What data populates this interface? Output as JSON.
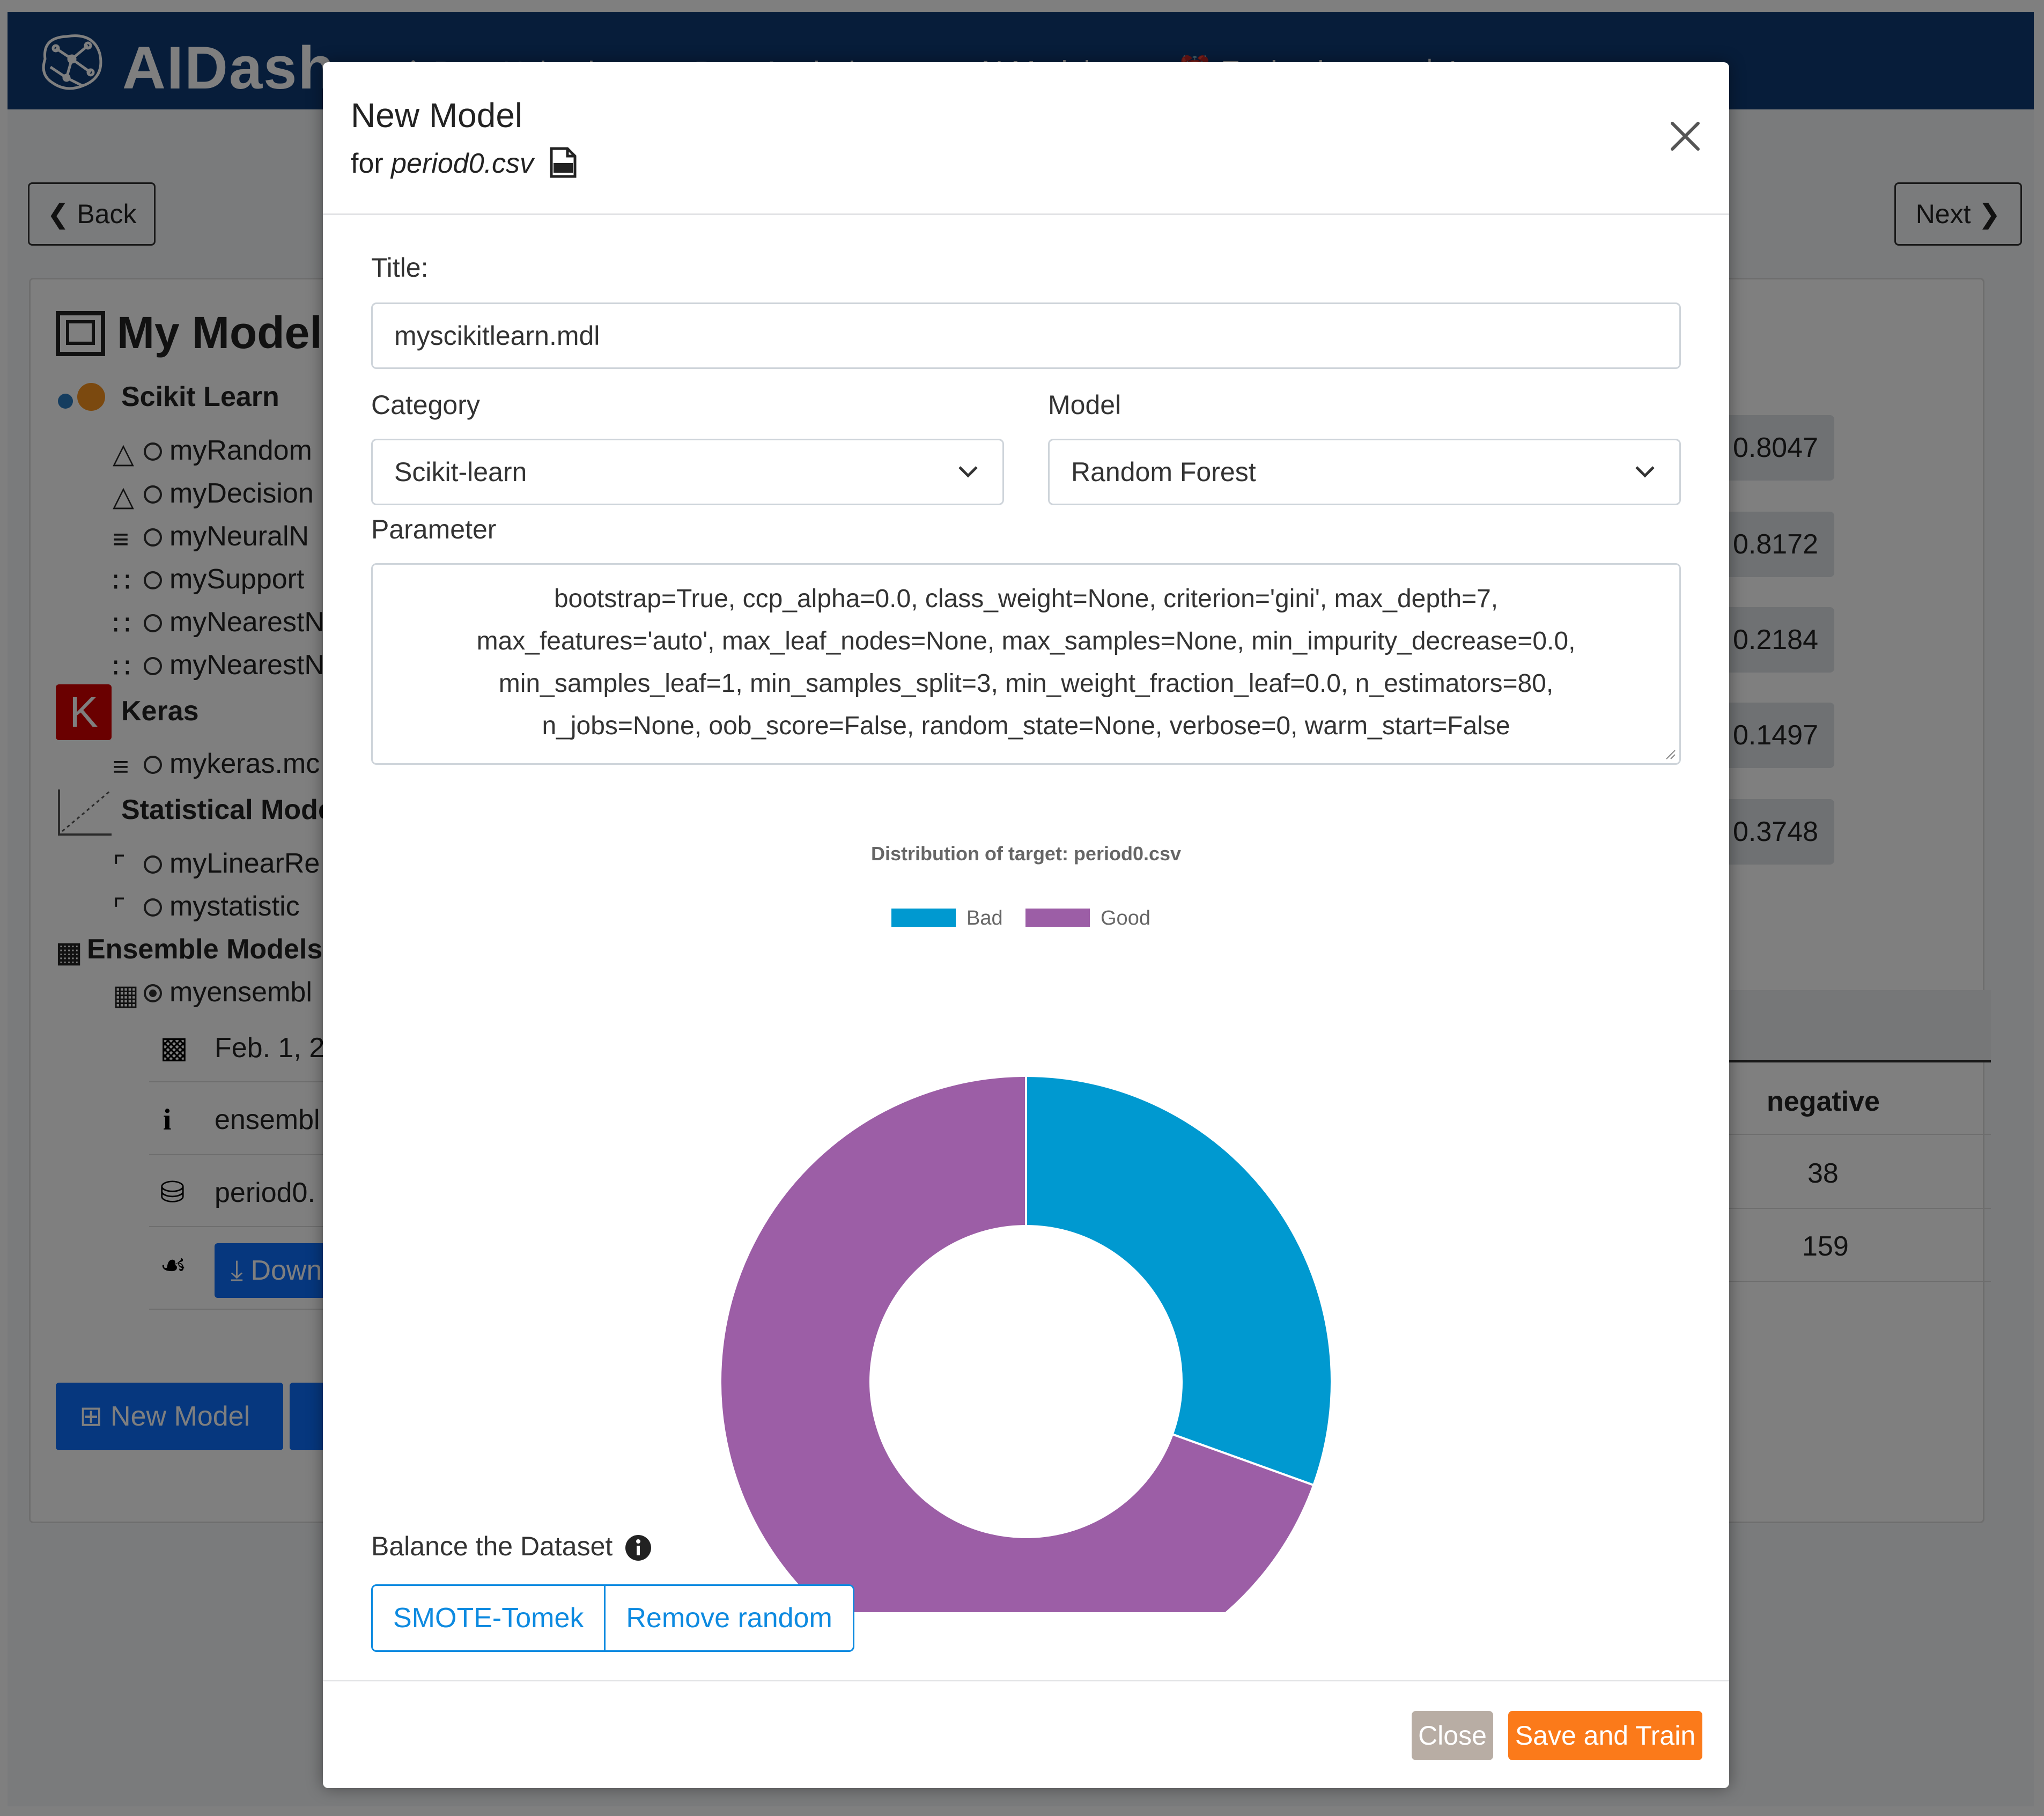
{
  "app": {
    "brand": "AIDash",
    "nav": [
      "Data Upload",
      "Data Analysis",
      "AI Models",
      "Evaluation",
      "Logout"
    ],
    "back_label": "Back",
    "next_label": "Next",
    "card_title": "My Models",
    "sections": {
      "scikit": "Scikit Learn",
      "keras": "Keras",
      "statistical": "Statistical Mode",
      "ensemble": "Ensemble Models"
    },
    "scikit_items": [
      "myRandom",
      "myDecision",
      "myNeuralN",
      "mySupport",
      "myNearestN",
      "myNearestN"
    ],
    "keras_items": [
      "mykeras.mc"
    ],
    "statistical_items": [
      "myLinearRe",
      "mystatistic"
    ],
    "ensemble_items": [
      "myensembl"
    ],
    "details": {
      "date": "Feb. 1, 2",
      "info": "ensembl",
      "dataset": "period0.",
      "download": "Down"
    },
    "badges": [
      "0.8047",
      "0.8172",
      "0.2184",
      "0.1497",
      "0.3748"
    ],
    "table": {
      "header": "negative",
      "rows": [
        "38",
        "159"
      ]
    },
    "new_model_label": "New Model"
  },
  "modal": {
    "title": "New Model",
    "subtitle_prefix": "for",
    "filename": "period0.csv",
    "title_label": "Title:",
    "title_value": "myscikitlearn.mdl",
    "category_label": "Category",
    "category_value": "Scikit-learn",
    "model_label": "Model",
    "model_value": "Random Forest",
    "parameter_label": "Parameter",
    "parameter_lines": [
      "bootstrap=True, ccp_alpha=0.0, class_weight=None, criterion='gini', max_depth=7,",
      "max_features='auto', max_leaf_nodes=None, max_samples=None, min_impurity_decrease=0.0,",
      "min_samples_leaf=1, min_samples_split=3, min_weight_fraction_leaf=0.0, n_estimators=80,",
      "n_jobs=None, oob_score=False, random_state=None, verbose=0, warm_start=False"
    ],
    "balance_label": "Balance the Dataset",
    "balance_options": [
      "SMOTE-Tomek",
      "Remove random"
    ],
    "close_label": "Close",
    "save_label": "Save and Train"
  },
  "chart_data": {
    "type": "pie",
    "title": "Distribution of target: period0.csv",
    "categories": [
      "Bad",
      "Good"
    ],
    "values": [
      30.5,
      69.5
    ],
    "colors": [
      "#0099d0",
      "#9c5ea6"
    ],
    "donut": true,
    "legend": "top"
  }
}
